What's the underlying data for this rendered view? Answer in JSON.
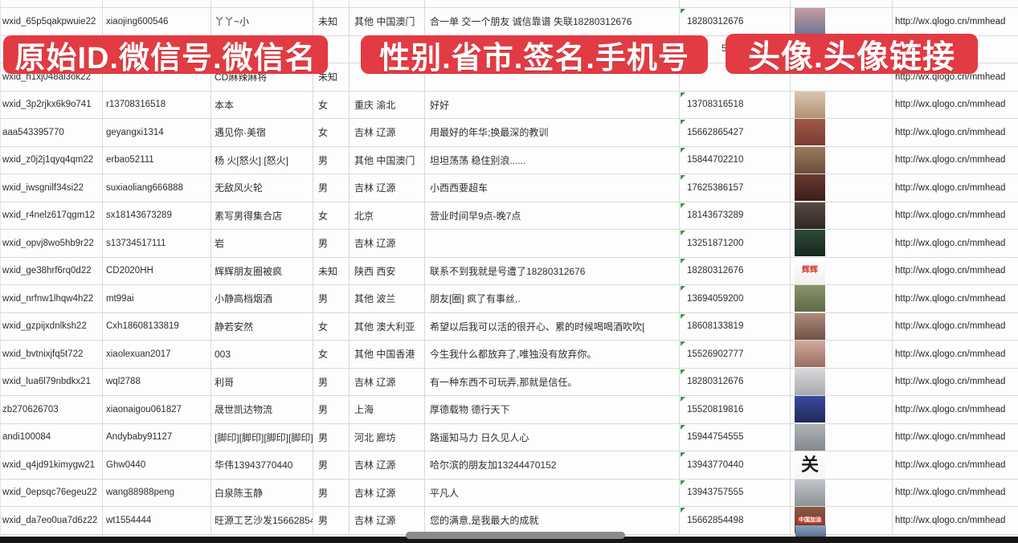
{
  "banners": {
    "id_label": "原始ID.微信号.微信名",
    "detail_label": "性别.省市.签名.手机号",
    "avatar_label": "头像.头像链接"
  },
  "colors": {
    "banner_red": "#e23b43",
    "grid_line": "#d7d9da",
    "flag_green": "#3c9a46",
    "player_bar_black": "#161616",
    "scrubber_gray": "#8a8a8a"
  },
  "table": {
    "columns": [
      "原始ID",
      "微信号",
      "微信名",
      "性别",
      "省市",
      "签名",
      "手机号",
      "头像",
      "头像链接"
    ],
    "rows": [
      {
        "wxid": "wxid_65p5qakpwuie22",
        "wechat_id": "xiaojing600546",
        "wechat_name": "丫丫~小",
        "gender": "未知",
        "region": "其他 中国澳门",
        "signature": "合一单 交一个朋友 诚信靠谱 失联18280312676",
        "phone": "18280312676",
        "avatar_url": "http://wx.qlogo.cn/mmhead",
        "avatar": {
          "colors": [
            "#c79ca0",
            "#6b7894"
          ],
          "text": ""
        }
      },
      {
        "wxid": "",
        "wechat_id": "",
        "wechat_name": "",
        "gender": "",
        "region": "",
        "signature": "",
        "phone": "5386",
        "avatar_url": "",
        "avatar": null
      },
      {
        "wxid": "wxid_h1xj048al3ok22",
        "wechat_id": "",
        "wechat_name": "CD麻辣麻将",
        "gender": "未知",
        "region": "",
        "signature": "",
        "phone": "",
        "avatar_url": "http://wx.qlogo.cn/mmhead",
        "avatar": null
      },
      {
        "wxid": "wxid_3p2rjkx6k9o741",
        "wechat_id": "r13708316518",
        "wechat_name": "本本",
        "gender": "女",
        "region": "重庆 渝北",
        "signature": "好好",
        "phone": "13708316518",
        "avatar_url": "http://wx.qlogo.cn/mmhead",
        "avatar": {
          "colors": [
            "#d9c6b2",
            "#b09272"
          ],
          "text": ""
        }
      },
      {
        "wxid": "aaa543395770",
        "wechat_id": "geyangxi1314",
        "wechat_name": "遇见你·美宿",
        "gender": "女",
        "region": "吉林 辽源",
        "signature": "用最好的年华;换最深的教训",
        "phone": "15662865427",
        "avatar_url": "http://wx.qlogo.cn/mmhead",
        "avatar": {
          "colors": [
            "#a05848",
            "#7a3c34"
          ],
          "text": ""
        }
      },
      {
        "wxid": "wxid_z0j2j1qyq4qm22",
        "wechat_id": "erbao52111",
        "wechat_name": "杨 火[怒火] [怒火]",
        "gender": "男",
        "region": "其他 中国澳门",
        "signature": "坦坦荡荡 稳住别浪......",
        "phone": "15844702210",
        "avatar_url": "http://wx.qlogo.cn/mmhead",
        "avatar": {
          "colors": [
            "#9a7a5e",
            "#6b4e3a"
          ],
          "text": ""
        }
      },
      {
        "wxid": "wxid_iwsgnilf34si22",
        "wechat_id": "suxiaoliang666888",
        "wechat_name": "无敌风火轮",
        "gender": "男",
        "region": "吉林 辽源",
        "signature": "小西西要超车",
        "phone": "17625386157",
        "avatar_url": "http://wx.qlogo.cn/mmhead",
        "avatar": {
          "colors": [
            "#6b3a30",
            "#3a1e1a"
          ],
          "text": ""
        }
      },
      {
        "wxid": "wxid_r4nelz617qgm12",
        "wechat_id": "sx18143673289",
        "wechat_name": "素写男得集合店",
        "gender": "女",
        "region": "北京",
        "signature": "营业时间早9点-晚7点",
        "phone": "18143673289",
        "avatar_url": "http://wx.qlogo.cn/mmhead",
        "avatar": {
          "colors": [
            "#5a4a44",
            "#2e2824"
          ],
          "text": ""
        }
      },
      {
        "wxid": "wxid_opvj8wo5hb9r22",
        "wechat_id": "s13734517111",
        "wechat_name": "岩",
        "gender": "男",
        "region": "吉林 辽源",
        "signature": "",
        "phone": "13251871200",
        "avatar_url": "http://wx.qlogo.cn/mmhead",
        "avatar": {
          "colors": [
            "#2e4a38",
            "#16281e"
          ],
          "text": ""
        }
      },
      {
        "wxid": "wxid_ge38hrf6rq0d22",
        "wechat_id": "CD2020HH",
        "wechat_name": "辉辉朋友圈被疯",
        "gender": "未知",
        "region": "陕西 西安",
        "signature": "联系不到我就是号遭了18280312676",
        "phone": "18280312676",
        "avatar_url": "http://wx.qlogo.cn/mmhead",
        "avatar": {
          "colors": [
            "#ffffff",
            "#f2eeee"
          ],
          "text": "辉辉",
          "text_color": "#d2382e",
          "text_size": 10
        }
      },
      {
        "wxid": "wxid_nrfnw1lhqw4h22",
        "wechat_id": "mt99ai",
        "wechat_name": "小静高档烟酒",
        "gender": "男",
        "region": "其他 波兰",
        "signature": "朋友[圈] 疯了有事丝,.",
        "phone": "13694059200",
        "avatar_url": "http://wx.qlogo.cn/mmhead",
        "avatar": {
          "colors": [
            "#8a9468",
            "#5e6a48"
          ],
          "text": ""
        }
      },
      {
        "wxid": "wxid_gzpijxdnlksh22",
        "wechat_id": "Cxh18608133819",
        "wechat_name": "静若安然",
        "gender": "女",
        "region": "其他 澳大利亚",
        "signature": "希望以后我可以活的很开心、累的时候喝喝酒吹吹[",
        "phone": "18608133819",
        "avatar_url": "http://wx.qlogo.cn/mmhead",
        "avatar": {
          "colors": [
            "#b08a7a",
            "#6e5248"
          ],
          "text": ""
        }
      },
      {
        "wxid": "wxid_bvtnixjfq5t722",
        "wechat_id": "xiaolexuan2017",
        "wechat_name": "003",
        "gender": "女",
        "region": "其他 中国香港",
        "signature": "今生我什么都放弃了,唯独没有放弃你。",
        "phone": "15526902777",
        "avatar_url": "http://wx.qlogo.cn/mmhead",
        "avatar": {
          "colors": [
            "#d2aa9a",
            "#9a6e62"
          ],
          "text": ""
        }
      },
      {
        "wxid": "wxid_lua6l79nbdkx21",
        "wechat_id": "wql2788",
        "wechat_name": "利哥",
        "gender": "男",
        "region": "吉林 辽源",
        "signature": "有一种东西不可玩弄,那就是信任。",
        "phone": "18280312676",
        "avatar_url": "http://wx.qlogo.cn/mmhead",
        "avatar": {
          "colors": [
            "#d8d8da",
            "#a8aab0"
          ],
          "text": ""
        }
      },
      {
        "wxid": "zb270626703",
        "wechat_id": "xiaonaigou061827",
        "wechat_name": "晟世凯达物流",
        "gender": "男",
        "region": "上海",
        "signature": "厚德载物 德行天下",
        "phone": "15520819816",
        "avatar_url": "http://wx.qlogo.cn/mmhead",
        "avatar": {
          "colors": [
            "#3a4a9e",
            "#202a58"
          ],
          "text": ""
        }
      },
      {
        "wxid": "andi100084",
        "wechat_id": "Andybaby91127",
        "wechat_name": "[脚印][脚印][脚印][脚印]",
        "gender": "男",
        "region": "河北 廊坊",
        "signature": "路遥知马力 日久见人心",
        "phone": "15944754555",
        "avatar_url": "http://wx.qlogo.cn/mmhead",
        "avatar": {
          "colors": [
            "#b0b4b8",
            "#82888e"
          ],
          "text": ""
        }
      },
      {
        "wxid": "wxid_q4jd91kimygw21",
        "wechat_id": "Ghw0440",
        "wechat_name": "华伟13943770440",
        "gender": "男",
        "region": "吉林 辽源",
        "signature": "哈尔滨的朋友加13244470152",
        "phone": "13943770440",
        "avatar_url": "http://wx.qlogo.cn/mmhead",
        "avatar": {
          "colors": [
            "#ffffff",
            "#f6f6f4"
          ],
          "text": "关",
          "text_color": "#1a1a1a",
          "text_size": 22
        }
      },
      {
        "wxid": "wxid_0epsqc76egeu22",
        "wechat_id": "wang88988peng",
        "wechat_name": "白泉陈玉静",
        "gender": "男",
        "region": "吉林 辽源",
        "signature": "平凡人",
        "phone": "13943757555",
        "avatar_url": "http://wx.qlogo.cn/mmhead",
        "avatar": {
          "colors": [
            "#c2c6ca",
            "#8e9298"
          ],
          "text": ""
        }
      },
      {
        "wxid": "wxid_da7eo0ua7d6z22",
        "wechat_id": "wt1554444",
        "wechat_name": "旺源工艺沙发15662854",
        "gender": "男",
        "region": "吉林 辽源",
        "signature": "您的满意,是我最大的成就",
        "phone": "15662854498",
        "avatar_url": "http://wx.qlogo.cn/mmhead",
        "avatar": {
          "colors": [
            "#8a5a42",
            "#5e3828"
          ],
          "text": "中国加油",
          "text_color": "#ffffff",
          "text_size": 7,
          "text_bg": "#c0392b"
        }
      }
    ]
  }
}
